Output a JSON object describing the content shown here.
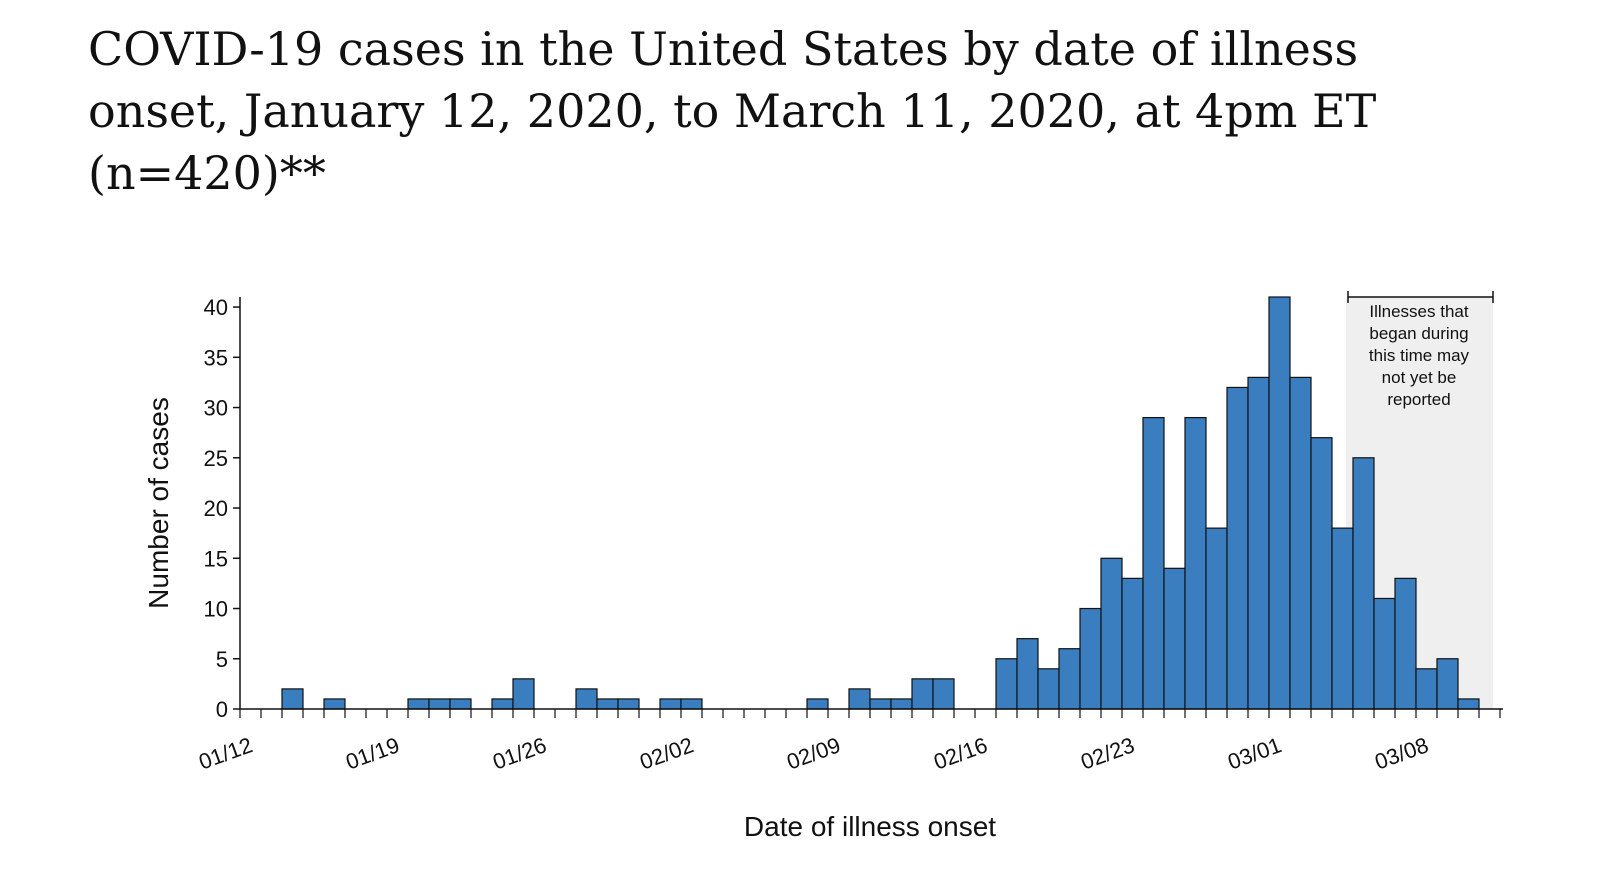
{
  "chart_data": {
    "type": "bar",
    "title": "COVID-19 cases in the United States by date of illness onset, January 12, 2020, to March 11, 2020, at 4pm ET (n=420)**",
    "x_label": "Date of illness onset",
    "y_label": "Number of cases",
    "annotation": [
      "Illnesses that",
      "began during",
      "this time may",
      "not yet be",
      "reported"
    ],
    "categories": [
      "01/12",
      null,
      null,
      null,
      null,
      null,
      null,
      "01/19",
      null,
      null,
      null,
      null,
      null,
      null,
      "01/26",
      null,
      null,
      null,
      null,
      null,
      null,
      "02/02",
      null,
      null,
      null,
      null,
      null,
      null,
      "02/09",
      null,
      null,
      null,
      null,
      null,
      null,
      "02/16",
      null,
      null,
      null,
      null,
      null,
      null,
      "02/23",
      null,
      null,
      null,
      null,
      null,
      null,
      "03/01",
      null,
      null,
      null,
      null,
      null,
      null,
      "03/08",
      null,
      null,
      null
    ],
    "values": [
      0,
      0,
      2,
      0,
      1,
      0,
      0,
      0,
      1,
      1,
      1,
      0,
      1,
      3,
      0,
      0,
      2,
      1,
      1,
      0,
      1,
      1,
      0,
      0,
      0,
      0,
      0,
      1,
      0,
      2,
      1,
      1,
      3,
      3,
      0,
      0,
      5,
      7,
      4,
      6,
      10,
      15,
      13,
      29,
      14,
      29,
      18,
      32,
      33,
      41,
      33,
      27,
      18,
      25,
      11,
      13,
      4,
      5,
      1,
      0
    ],
    "color": "#3a7ebf",
    "ylim": [
      0,
      41
    ],
    "yticks": [
      0,
      5,
      10,
      15,
      20,
      25,
      30,
      35,
      40
    ]
  }
}
